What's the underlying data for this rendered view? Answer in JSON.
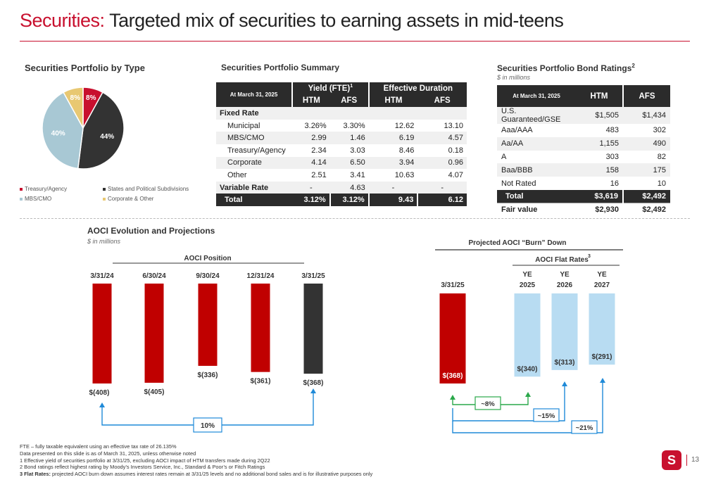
{
  "title": {
    "accent": "Securities:",
    "rest": " Targeted mix of securities to earning assets in mid-teens"
  },
  "pie": {
    "heading": "Securities Portfolio by Type",
    "slices": [
      {
        "label": "Treasury/Agency",
        "pct": 8,
        "text": "8%",
        "color": "#c8102e"
      },
      {
        "label": "States and Political Subdivisions",
        "pct": 44,
        "text": "44%",
        "color": "#333333"
      },
      {
        "label": "MBS/CMO",
        "pct": 40,
        "text": "40%",
        "color": "#a8c8d4"
      },
      {
        "label": "Corporate & Other",
        "pct": 8,
        "text": "8%",
        "color": "#e8c872"
      }
    ]
  },
  "summary": {
    "heading": "Securities Portfolio Summary",
    "corner": "At March 31, 2025",
    "yield_label": "Yield (FTE)",
    "yield_sup": "1",
    "dur_label": "Effective Duration",
    "sub": [
      "HTM",
      "AFS",
      "HTM",
      "AFS"
    ],
    "fixed_label": "Fixed Rate",
    "rows": [
      {
        "label": "Municipal",
        "v": [
          "3.26%",
          "3.30%",
          "12.62",
          "13.10"
        ]
      },
      {
        "label": "MBS/CMO",
        "v": [
          "2.99",
          "1.46",
          "6.19",
          "4.57"
        ]
      },
      {
        "label": "Treasury/Agency",
        "v": [
          "2.34",
          "3.03",
          "8.46",
          "0.18"
        ]
      },
      {
        "label": "Corporate",
        "v": [
          "4.14",
          "6.50",
          "3.94",
          "0.96"
        ]
      },
      {
        "label": "Other",
        "v": [
          "2.51",
          "3.41",
          "10.63",
          "4.07"
        ]
      }
    ],
    "variable": {
      "label": "Variable Rate",
      "v": [
        "-",
        "4.63",
        "-",
        "-"
      ]
    },
    "total": {
      "label": "Total",
      "v": [
        "3.12%",
        "3.12%",
        "9.43",
        "6.12"
      ]
    }
  },
  "ratings": {
    "heading": "Securities Portfolio Bond Ratings",
    "heading_sup": "2",
    "sub": "$ in millions",
    "corner": "At March 31, 2025",
    "cols": [
      "HTM",
      "AFS"
    ],
    "rows": [
      {
        "label": "U.S. Guaranteed/GSE",
        "htm": "$1,505",
        "afs": "$1,434"
      },
      {
        "label": "Aaa/AAA",
        "htm": "483",
        "afs": "302"
      },
      {
        "label": "Aa/AA",
        "htm": "1,155",
        "afs": "490"
      },
      {
        "label": "A",
        "htm": "303",
        "afs": "82"
      },
      {
        "label": "Baa/BBB",
        "htm": "158",
        "afs": "175"
      },
      {
        "label": "Not Rated",
        "htm": "16",
        "afs": "10"
      }
    ],
    "total": {
      "label": "Total",
      "htm": "$3,619",
      "afs": "$2,492"
    },
    "fair": {
      "label": "Fair value",
      "htm": "$2,930",
      "afs": "$2,492"
    }
  },
  "aoci": {
    "heading": "AOCI Evolution and Projections",
    "sub": "$ in millions",
    "position_title": "AOCI Position",
    "bars": [
      {
        "date": "3/31/24",
        "value": -408,
        "label": "$(408)",
        "color": "#c00000"
      },
      {
        "date": "6/30/24",
        "value": -405,
        "label": "$(405)",
        "color": "#c00000"
      },
      {
        "date": "9/30/24",
        "value": -336,
        "label": "$(336)",
        "color": "#c00000"
      },
      {
        "date": "12/31/24",
        "value": -361,
        "label": "$(361)",
        "color": "#c00000"
      },
      {
        "date": "3/31/25",
        "value": -368,
        "label": "$(368)",
        "color": "#333333"
      }
    ],
    "change_label": "10%"
  },
  "burn": {
    "title": "Projected AOCI “Burn” Down",
    "flat_title": "AOCI Flat Rates",
    "flat_sup": "3",
    "bars": [
      {
        "date1": "3/31/25",
        "date2": "",
        "value": -368,
        "label": "$(368)",
        "color": "#c00000"
      },
      {
        "date1": "YE",
        "date2": "2025",
        "value": -340,
        "label": "$(340)",
        "color": "#b8dcf2"
      },
      {
        "date1": "YE",
        "date2": "2026",
        "value": -313,
        "label": "$(313)",
        "color": "#b8dcf2"
      },
      {
        "date1": "YE",
        "date2": "2027",
        "value": -291,
        "label": "$(291)",
        "color": "#b8dcf2"
      }
    ],
    "changes": [
      "~8%",
      "~15%",
      "~21%"
    ]
  },
  "footnotes": {
    "fte": "FTE – fully taxable equivalent using an effective tax rate of 26.135%",
    "asof": "Data presented on this slide is as of March 31, 2025, unless otherwise noted",
    "n1": "1  Effective yield of securities portfolio at 3/31/25, excluding AOCI impact of HTM transfers made during 2Q22",
    "n2": "2  Bond ratings reflect highest rating by Moody’s Investors Service, Inc., Standard & Poor’s or Fitch Ratings",
    "n3_bold": "3  Flat Rates:",
    "n3": " projected AOCI burn down assumes interest rates remain at 3/31/25 levels and no additional bond sales and is for illustrative purposes only"
  },
  "logo_text": "S",
  "page_number": "13"
}
